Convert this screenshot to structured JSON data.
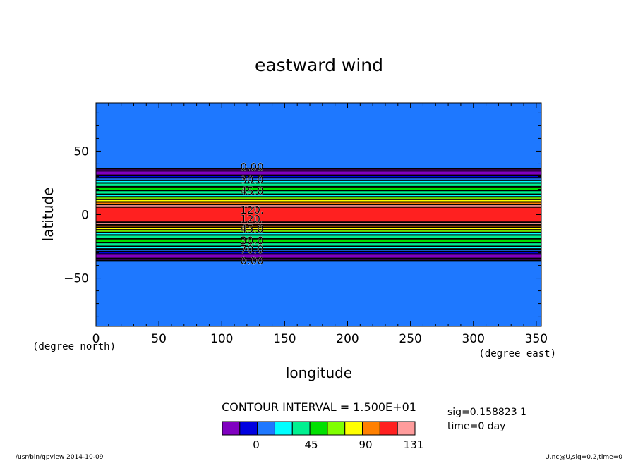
{
  "chart_data": {
    "type": "heatmap",
    "title": "eastward wind",
    "xlabel": "longitude",
    "ylabel": "latitude",
    "x_unit": "(degree_east)",
    "y_unit": "(degree_north)",
    "xlim": [
      0,
      354
    ],
    "ylim": [
      -88,
      88
    ],
    "x_ticks": [
      0,
      50,
      100,
      150,
      200,
      250,
      300,
      350
    ],
    "y_ticks": [
      50,
      0,
      -50
    ],
    "y_tick_labels": [
      "50",
      "0",
      "−50"
    ],
    "contour_interval_text": "CONTOUR INTERVAL = 1.500E+01",
    "colorbar": {
      "colors": [
        "#8000c0",
        "#0000e0",
        "#1e78ff",
        "#00ffff",
        "#00f090",
        "#00e000",
        "#80ff00",
        "#ffff00",
        "#ff8000",
        "#ff2020",
        "#ff9c9c"
      ],
      "labels": [
        "0",
        "45",
        "90",
        "131"
      ]
    },
    "zonal_profile": [
      {
        "lat_from": 88,
        "lat_to": 36,
        "level": 2
      },
      {
        "lat_from": 36,
        "lat_to": 34.5,
        "level": 0
      },
      {
        "lat_from": 34.5,
        "lat_to": 31,
        "level": 0
      },
      {
        "lat_from": 31,
        "lat_to": 29,
        "level": 1
      },
      {
        "lat_from": 29,
        "lat_to": 27,
        "level": 2
      },
      {
        "lat_from": 27,
        "lat_to": 25,
        "level": 3
      },
      {
        "lat_from": 25,
        "lat_to": 22,
        "level": 4
      },
      {
        "lat_from": 22,
        "lat_to": 19,
        "level": 5
      },
      {
        "lat_from": 19,
        "lat_to": 16,
        "level": 4
      },
      {
        "lat_from": 16,
        "lat_to": 14,
        "level": 3
      },
      {
        "lat_from": 14,
        "lat_to": 12,
        "level": 6
      },
      {
        "lat_from": 12,
        "lat_to": 10,
        "level": 7
      },
      {
        "lat_from": 10,
        "lat_to": 8,
        "level": 8
      },
      {
        "lat_from": 8,
        "lat_to": 6,
        "level": 10
      },
      {
        "lat_from": 6,
        "lat_to": -6,
        "level": 9
      },
      {
        "lat_from": -6,
        "lat_to": -8,
        "level": 10
      },
      {
        "lat_from": -8,
        "lat_to": -10,
        "level": 8
      },
      {
        "lat_from": -10,
        "lat_to": -12,
        "level": 7
      },
      {
        "lat_from": -12,
        "lat_to": -14,
        "level": 6
      },
      {
        "lat_from": -14,
        "lat_to": -16,
        "level": 3
      },
      {
        "lat_from": -16,
        "lat_to": -19,
        "level": 4
      },
      {
        "lat_from": -19,
        "lat_to": -22,
        "level": 5
      },
      {
        "lat_from": -22,
        "lat_to": -25,
        "level": 4
      },
      {
        "lat_from": -25,
        "lat_to": -27,
        "level": 3
      },
      {
        "lat_from": -27,
        "lat_to": -29,
        "level": 2
      },
      {
        "lat_from": -29,
        "lat_to": -31,
        "level": 1
      },
      {
        "lat_from": -31,
        "lat_to": -34.5,
        "level": 0
      },
      {
        "lat_from": -34.5,
        "lat_to": -36,
        "level": 0
      },
      {
        "lat_from": -36,
        "lat_to": -88,
        "level": 2
      }
    ],
    "contour_lines_lat": [
      36,
      34.5,
      31,
      29,
      27,
      25,
      22,
      19,
      16,
      14,
      12,
      10,
      8,
      6,
      -6,
      -8,
      -10,
      -12,
      -14,
      -16,
      -19,
      -22,
      -25,
      -27,
      -29,
      -31,
      -34.5,
      -36
    ],
    "contour_labels": [
      {
        "text": "0.00",
        "lat": 37.5
      },
      {
        "text": "30.0",
        "lat": 27.5
      },
      {
        "text": "45.0",
        "lat": 18.5
      },
      {
        "text": "120.",
        "lat": 3.5
      },
      {
        "text": "120.",
        "lat": -3.5
      },
      {
        "text": "45.0",
        "lat": -11.5
      },
      {
        "text": "30.0",
        "lat": -20.5
      },
      {
        "text": "70.0",
        "lat": -27.5
      },
      {
        "text": "0.00",
        "lat": -36.5
      }
    ],
    "label_lon": 124
  },
  "info": {
    "line1": "sig=0.158823 1",
    "line2": "time=0 day"
  },
  "footer": {
    "left": "/usr/bin/gpview   2014-10-09",
    "right": "U.nc@U,sig=0.2,time=0"
  }
}
